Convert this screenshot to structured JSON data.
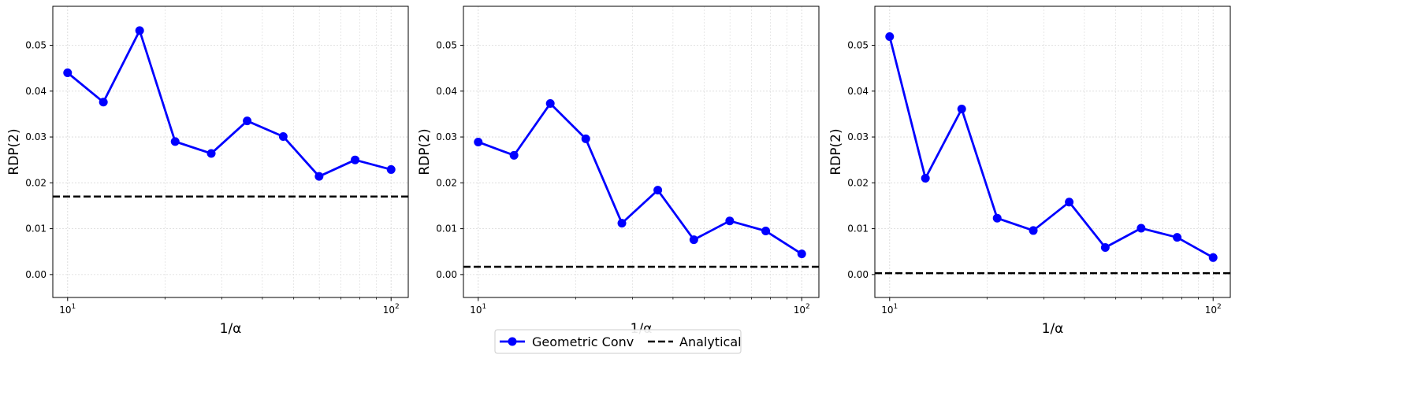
{
  "chart_data": {
    "type": "line",
    "legend": {
      "placement": "bottom-center",
      "entries": [
        {
          "label": "Geometric Conv",
          "color": "#0000ff",
          "style": "solid",
          "marker": "circle"
        },
        {
          "label": "Analytical",
          "color": "#000000",
          "style": "dashed"
        }
      ]
    },
    "x_scale": "log",
    "x_ticks": [
      {
        "value": 10,
        "base": "10",
        "exp": "1"
      },
      {
        "value": 100,
        "base": "10",
        "exp": "2"
      }
    ],
    "y_ticks": [
      "0.00",
      "0.01",
      "0.02",
      "0.03",
      "0.04",
      "0.05"
    ],
    "grid": true,
    "panels": [
      {
        "xlabel": "1/α",
        "ylabel": "RDP(2)",
        "xlim": [
          9.0,
          113
        ],
        "ylim": [
          -0.005,
          0.0585
        ],
        "x": [
          10,
          12.9,
          16.7,
          21.5,
          27.8,
          35.9,
          46.4,
          59.9,
          77.4,
          100
        ],
        "series": [
          {
            "name": "Geometric Conv",
            "color": "#0000ff",
            "values": [
              0.044,
              0.0376,
              0.0532,
              0.029,
              0.0264,
              0.0335,
              0.0301,
              0.0214,
              0.025,
              0.0229
            ]
          }
        ],
        "analytical": 0.017
      },
      {
        "xlabel": "1/α",
        "ylabel": "RDP(2)",
        "xlim": [
          9.0,
          113
        ],
        "ylim": [
          -0.005,
          0.0585
        ],
        "x": [
          10,
          12.9,
          16.7,
          21.5,
          27.8,
          35.9,
          46.4,
          59.9,
          77.4,
          100
        ],
        "series": [
          {
            "name": "Geometric Conv",
            "color": "#0000ff",
            "values": [
              0.0289,
              0.026,
              0.0373,
              0.0296,
              0.0112,
              0.0184,
              0.0076,
              0.0117,
              0.0095,
              0.0045
            ]
          }
        ],
        "analytical": 0.0017
      },
      {
        "xlabel": "1/α",
        "ylabel": "RDP(2)",
        "xlim": [
          9.0,
          113
        ],
        "ylim": [
          -0.005,
          0.0585
        ],
        "x": [
          10,
          12.9,
          16.7,
          21.5,
          27.8,
          35.9,
          46.4,
          59.9,
          77.4,
          100
        ],
        "series": [
          {
            "name": "Geometric Conv",
            "color": "#0000ff",
            "values": [
              0.0519,
              0.021,
              0.0361,
              0.0123,
              0.0096,
              0.0158,
              0.0059,
              0.0101,
              0.0081,
              0.0037
            ]
          }
        ],
        "analytical": 0.0003
      }
    ]
  }
}
